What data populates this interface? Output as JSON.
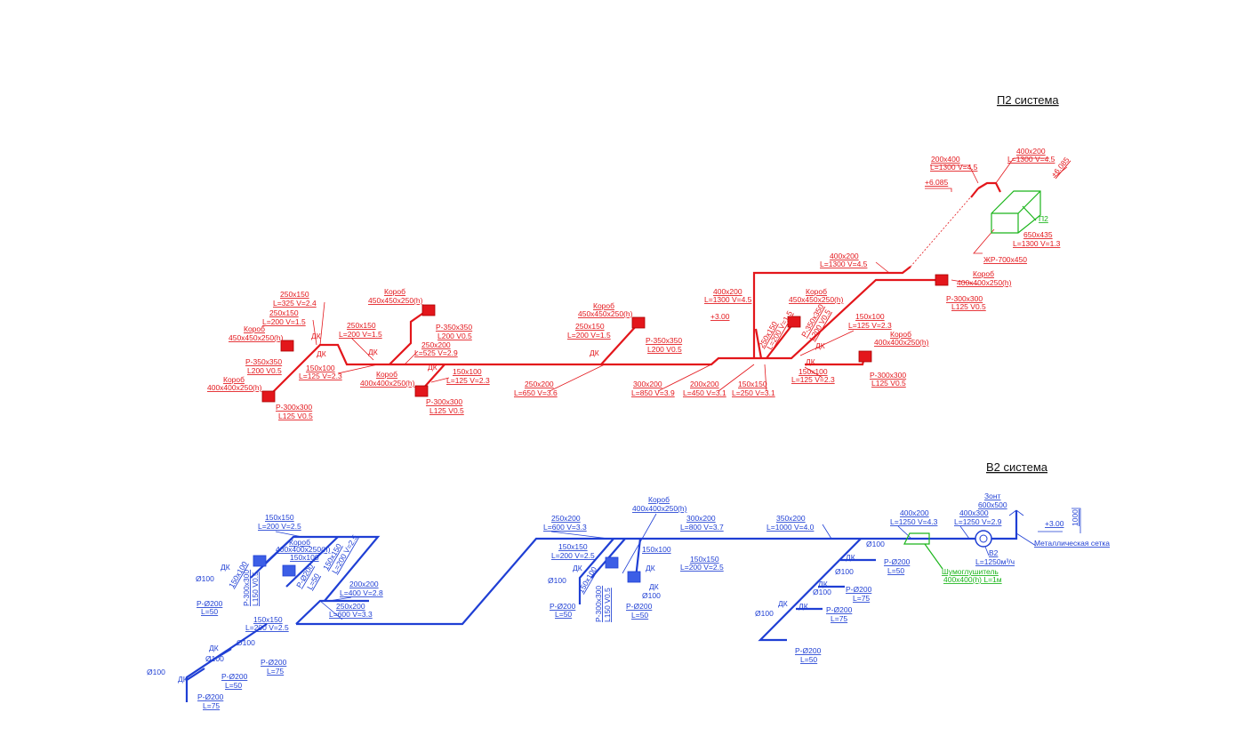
{
  "systems": [
    {
      "title": "П2 система",
      "labels": [
        "200x400",
        "L=1300 V=4.5",
        "400x200",
        "L=1300 V=4.5",
        "+6.085",
        "+6.085",
        "П2",
        "650x435",
        "L=1300 V=1.3",
        "ЖР-700x450",
        "400x200",
        "L=1300 V=4.5",
        "Короб",
        "400x400x250(h)",
        "Р-300x300",
        "L125 V0.5",
        "400x200",
        "L=1300 V=4.5",
        "Короб",
        "450x450x250(h)",
        "+3.00",
        "150x100",
        "L=125 V=2.3",
        "Короб",
        "400x400x250(h)",
        "ДК",
        "ДК",
        "150x100",
        "L=125 V=2.3",
        "Р-300x300",
        "L125 V0.5",
        "300x200",
        "L=850 V=3.9",
        "200x200",
        "L=450 V=3.1",
        "150x150",
        "L=250 V=3.1",
        "250x200",
        "L=650 V=3.6",
        "Короб",
        "450x450x250(h)",
        "250x150",
        "L=200 V=1.5",
        "Р-350x350",
        "L200 V0.5",
        "ДК",
        "Короб",
        "450x450x250(h)",
        "Р-350x350",
        "L200 V0.5",
        "250x150",
        "L=200 V=1.5",
        "250x200",
        "L=525 V=2.9",
        "ДК",
        "ДК",
        "150x100",
        "L=125 V=2.3",
        "Короб",
        "400x400x250(h)",
        "Р-300x300",
        "L125 V0.5",
        "250x150",
        "L=325 V=2.4",
        "250x150",
        "L=200 V=1.5",
        "Короб",
        "450x450x250(h)",
        "ДК",
        "ДК",
        "Р-350x350",
        "L200 V0.5",
        "150x100",
        "L=125 V=2.3",
        "Короб",
        "400x400x250(h)",
        "Р-300x300",
        "L125 V0.5",
        "250x150",
        "L=200 V=1.5",
        "Р-350x350",
        "L200 V0.5"
      ]
    },
    {
      "title": "В2 система",
      "labels": [
        "Зонт",
        "600x500",
        "+3.00",
        "1000",
        "Металлическая сетка",
        "400x200",
        "L=1250 V=4.3",
        "400x300",
        "L=1250 V=2.9",
        "В2",
        "L=1250м³/ч",
        "Шумоглушитель",
        "400x400(h) L=1м",
        "350x200",
        "L=1000 V=4.0",
        "Ø100",
        "ДК",
        "Р-Ø200",
        "L=50",
        "Ø100",
        "ДК",
        "Р-Ø200",
        "L=75",
        "Ø100",
        "ДК",
        "ДК",
        "Р-Ø200",
        "L=75",
        "Ø100",
        "Р-Ø200",
        "L=50",
        "300x200",
        "L=800 V=3.7",
        "Короб",
        "400x400x250(h)",
        "250x200",
        "L=600 V=3.3",
        "150x150",
        "L=200 V=2.5",
        "150x100",
        "150x150",
        "L=200 V=2.5",
        "ДК",
        "ДК",
        "Ø100",
        "ДК",
        "Ø100",
        "Р-Ø200",
        "L=50",
        "Р-Ø200",
        "L=50",
        "150x100",
        "Р-300x300",
        "L150 V0.5",
        "150x150",
        "L=200 V=2.5",
        "Короб",
        "400x400x250(h)",
        "150x100",
        "ДК",
        "Ø100",
        "200x200",
        "L=400 V=2.8",
        "250x200",
        "L=600 V=3.3",
        "Р-Ø200",
        "L=50",
        "150x150",
        "L=200 V=2.5",
        "Ø100",
        "ДК",
        "Ø100",
        "Р-Ø200",
        "L=75",
        "Ø100",
        "ДК",
        "Р-Ø200",
        "L=50",
        "Р-Ø200",
        "L=75",
        "150x150",
        "L=200 V=2.5",
        "Р-Ø200",
        "L=50",
        "150x100",
        "Р-300x300",
        "L150 V0.5"
      ]
    }
  ]
}
